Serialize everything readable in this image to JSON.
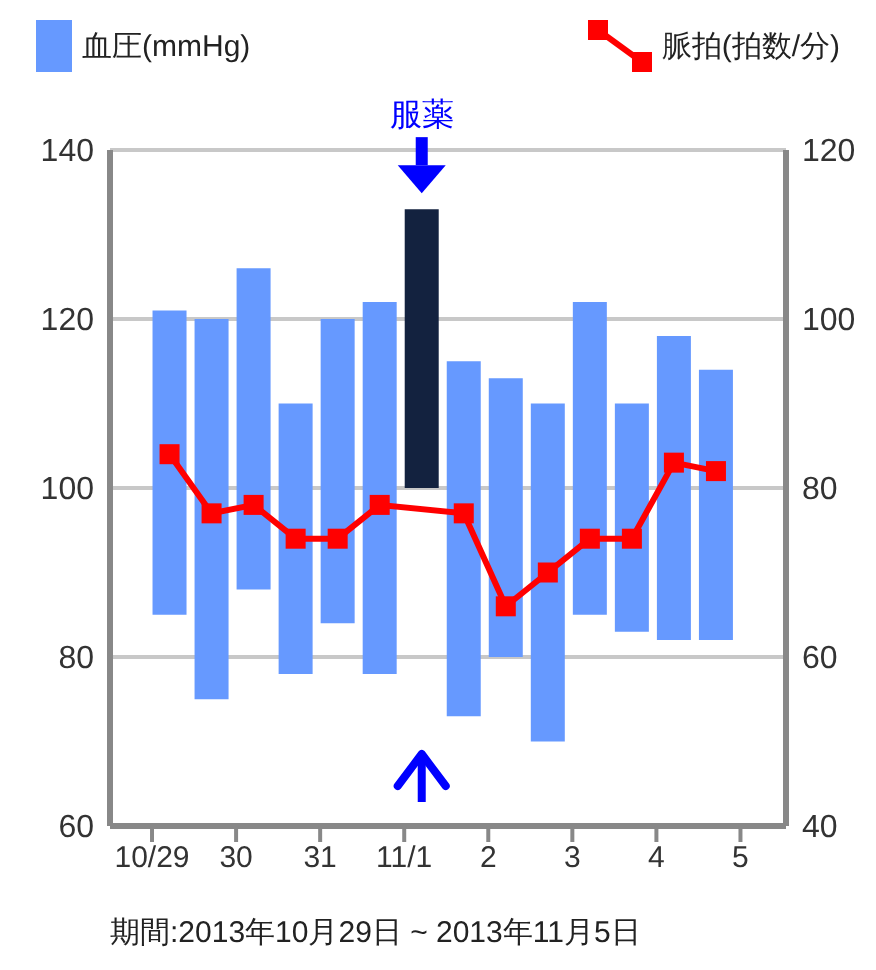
{
  "chart_data": {
    "type": "bar",
    "x": [
      "2013-10-29T05:00",
      "2013-10-29T17:00",
      "2013-10-30T05:00",
      "2013-10-30T17:00",
      "2013-10-31T05:00",
      "2013-10-31T17:00",
      "2013-11-01T05:00",
      "2013-11-01T17:00",
      "2013-11-02T05:00",
      "2013-11-02T17:00",
      "2013-11-03T05:00",
      "2013-11-03T17:00",
      "2013-11-04T05:00",
      "2013-11-04T17:00"
    ],
    "xlim": [
      "2013-10-28T12:00",
      "2013-11-05T13:00"
    ],
    "xticks": [
      {
        "value": "2013-10-29",
        "label": "10/29"
      },
      {
        "value": "2013-10-30",
        "label": "30"
      },
      {
        "value": "2013-10-31",
        "label": "31"
      },
      {
        "value": "2013-11-01",
        "label": "11/1"
      },
      {
        "value": "2013-11-02",
        "label": "2"
      },
      {
        "value": "2013-11-03",
        "label": "3"
      },
      {
        "value": "2013-11-04",
        "label": "4"
      },
      {
        "value": "2013-11-05",
        "label": "5"
      }
    ],
    "ylim": [
      60,
      140
    ],
    "yticks": [
      60,
      80,
      100,
      120,
      140
    ],
    "y2lim": [
      40,
      120
    ],
    "y2ticks": [
      40,
      60,
      80,
      100,
      120
    ],
    "grid": "y",
    "legend": "top",
    "annotations": [
      {
        "text": "服薬",
        "x": "2013-11-01T05:00",
        "y": 133
      },
      "期間:2013年10月29日 ~ 2013年11月5日"
    ],
    "series": [
      {
        "name": "血圧(mmHg)",
        "color": "#6699ff",
        "colors": [
          "#6699ff",
          "#6699ff",
          "#6699ff",
          "#6699ff",
          "#6699ff",
          "#6699ff",
          "#13223f",
          "#6699ff",
          "#6699ff",
          "#6699ff",
          "#6699ff",
          "#6699ff",
          "#6699ff",
          "#6699ff"
        ],
        "base": [
          85,
          75,
          88,
          78,
          84,
          78,
          100,
          73,
          80,
          70,
          85,
          83,
          82,
          82
        ],
        "values": [
          36,
          45,
          38,
          32,
          36,
          44,
          33,
          42,
          33,
          40,
          37,
          27,
          36,
          32
        ]
      },
      {
        "name": "脈拍(拍数/分)",
        "type": "line",
        "axis": "y2",
        "color": "#ff0000",
        "marker": "square",
        "values": [
          84,
          77,
          78,
          74,
          74,
          78,
          null,
          77,
          66,
          70,
          74,
          74,
          83,
          82
        ]
      }
    ]
  }
}
